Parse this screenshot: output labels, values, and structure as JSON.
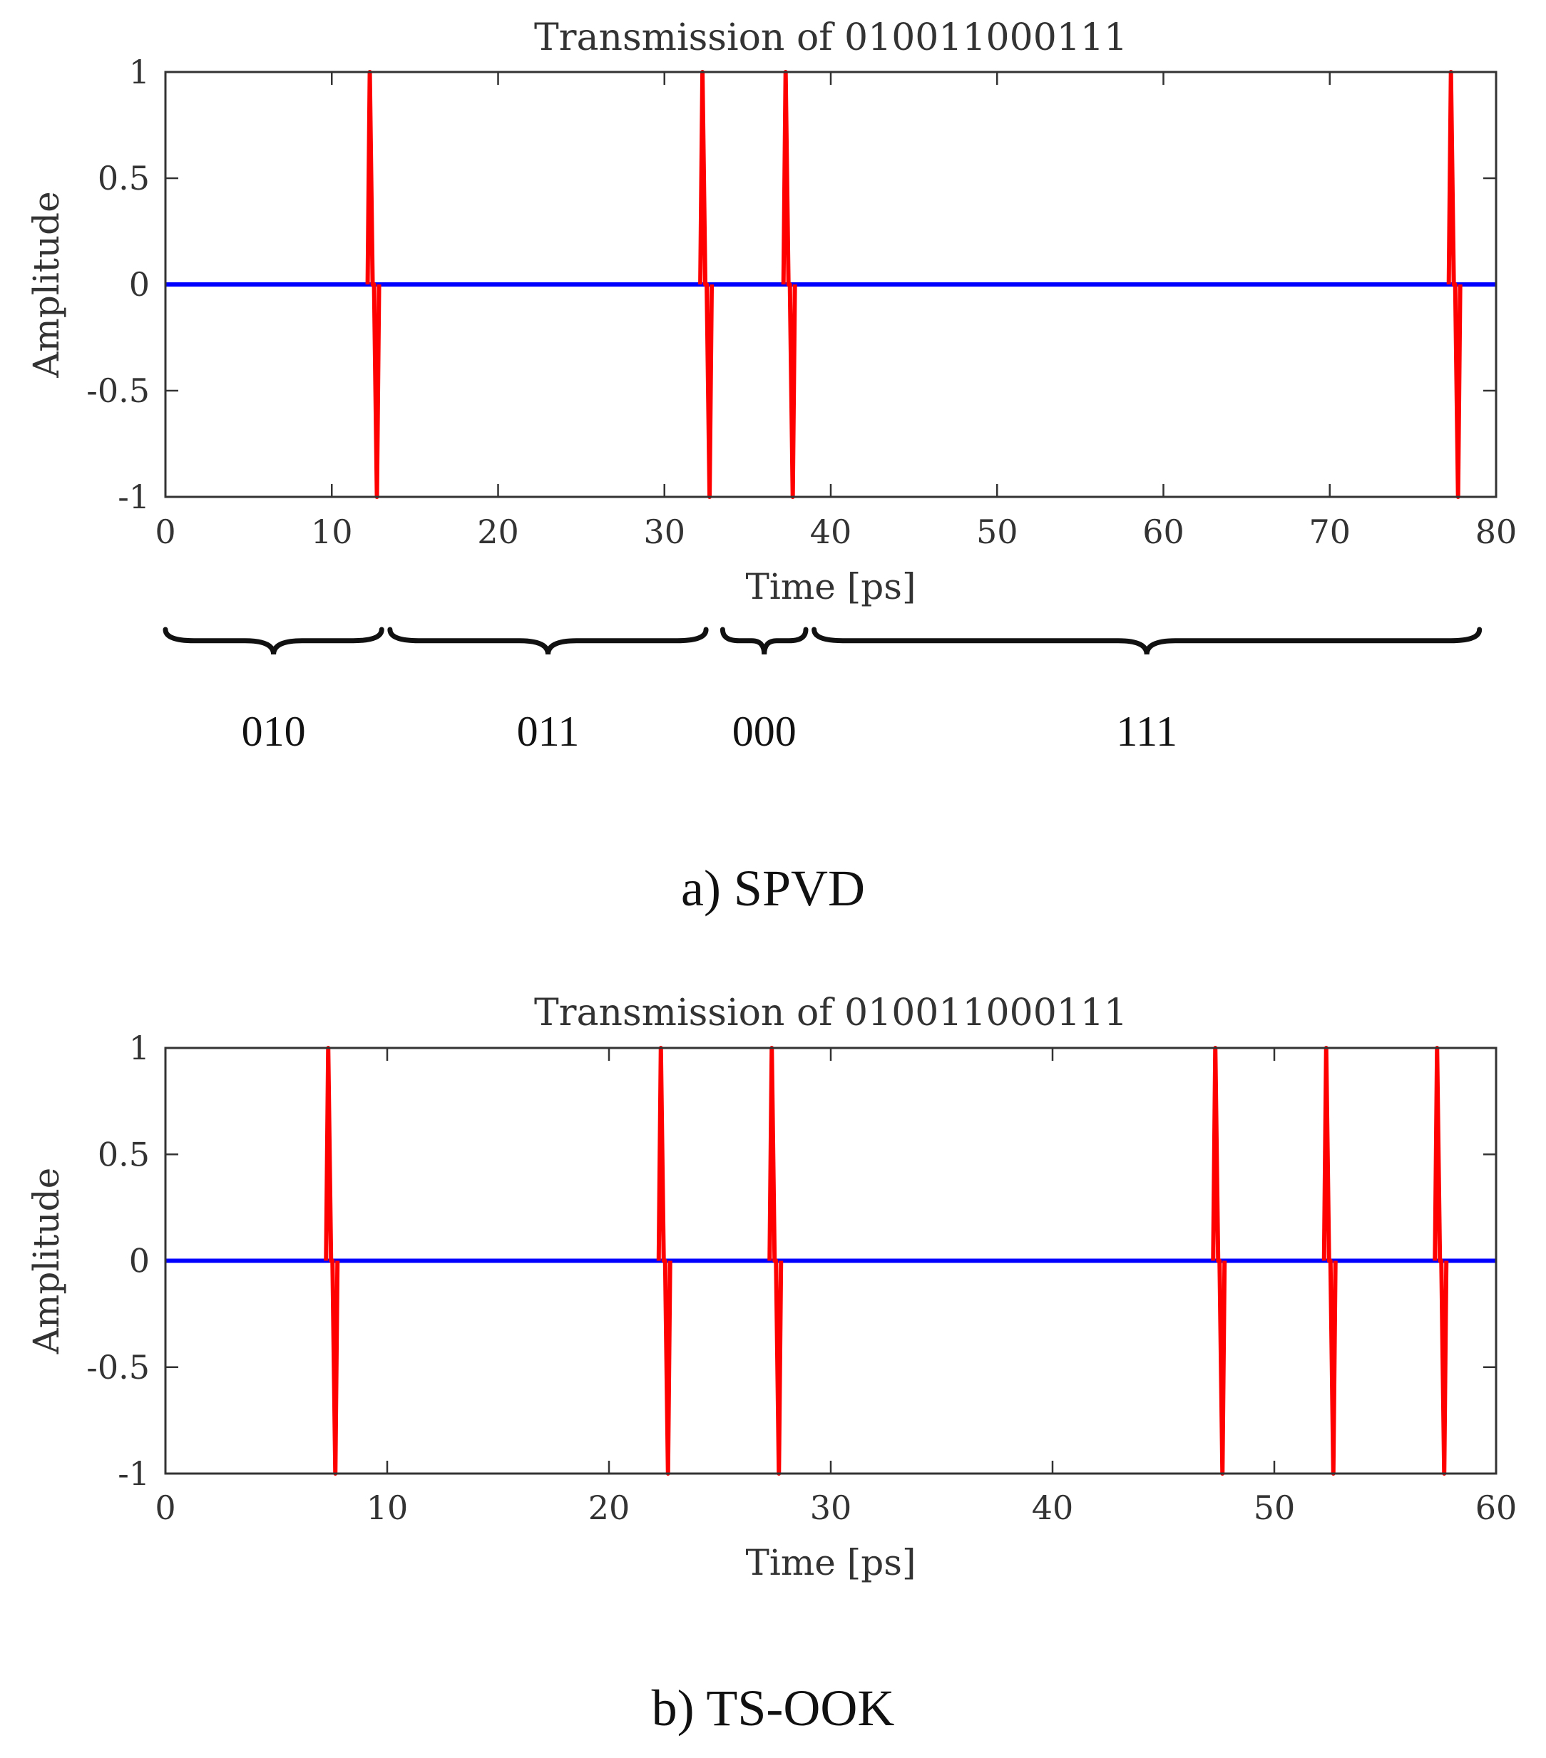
{
  "colors": {
    "baseline": "#0000ff",
    "pulse": "#ff0000",
    "axis": "#333333",
    "brace": "#111111"
  },
  "chart_data": [
    {
      "type": "line",
      "title": "Transmission of 010011000111",
      "xlabel": "Time [ps]",
      "ylabel": "Amplitude",
      "xlim": [
        0,
        80
      ],
      "ylim": [
        -1,
        1
      ],
      "x_ticks": [
        0,
        10,
        20,
        30,
        40,
        50,
        60,
        70,
        80
      ],
      "x_tick_labels": [
        "0",
        "10",
        "20",
        "30",
        "40",
        "50",
        "60",
        "70",
        "80"
      ],
      "y_ticks": [
        1,
        0.5,
        0,
        -0.5,
        -1
      ],
      "y_tick_labels": [
        "1",
        "0.5",
        "0",
        "-0.5",
        "-1"
      ],
      "series": [
        {
          "name": "baseline",
          "x": [
            0,
            80
          ],
          "y": [
            0,
            0
          ]
        },
        {
          "name": "pulses",
          "pulse_times_ps": [
            12.5,
            32.5,
            37.5,
            77.5
          ],
          "peak": 1,
          "trough": -1
        }
      ],
      "braces": [
        {
          "label": "010",
          "x_start": 0,
          "x_end": 13
        },
        {
          "label": "011",
          "x_start": 13.5,
          "x_end": 32.5
        },
        {
          "label": "000",
          "x_start": 33.5,
          "x_end": 38.5
        },
        {
          "label": "111",
          "x_start": 39,
          "x_end": 79
        }
      ],
      "caption": "a) SPVD"
    },
    {
      "type": "line",
      "title": "Transmission of 010011000111",
      "xlabel": "Time [ps]",
      "ylabel": "Amplitude",
      "xlim": [
        0,
        60
      ],
      "ylim": [
        -1,
        1
      ],
      "x_ticks": [
        0,
        10,
        20,
        30,
        40,
        50,
        60
      ],
      "x_tick_labels": [
        "0",
        "10",
        "20",
        "30",
        "40",
        "50",
        "60"
      ],
      "y_ticks": [
        1,
        0.5,
        0,
        -0.5,
        -1
      ],
      "y_tick_labels": [
        "1",
        "0.5",
        "0",
        "-0.5",
        "-1"
      ],
      "series": [
        {
          "name": "baseline",
          "x": [
            0,
            60
          ],
          "y": [
            0,
            0
          ]
        },
        {
          "name": "pulses",
          "pulse_times_ps": [
            7.5,
            22.5,
            27.5,
            47.5,
            52.5,
            57.5
          ],
          "peak": 1,
          "trough": -1
        }
      ],
      "braces": [],
      "caption": "b) TS-OOK"
    }
  ]
}
